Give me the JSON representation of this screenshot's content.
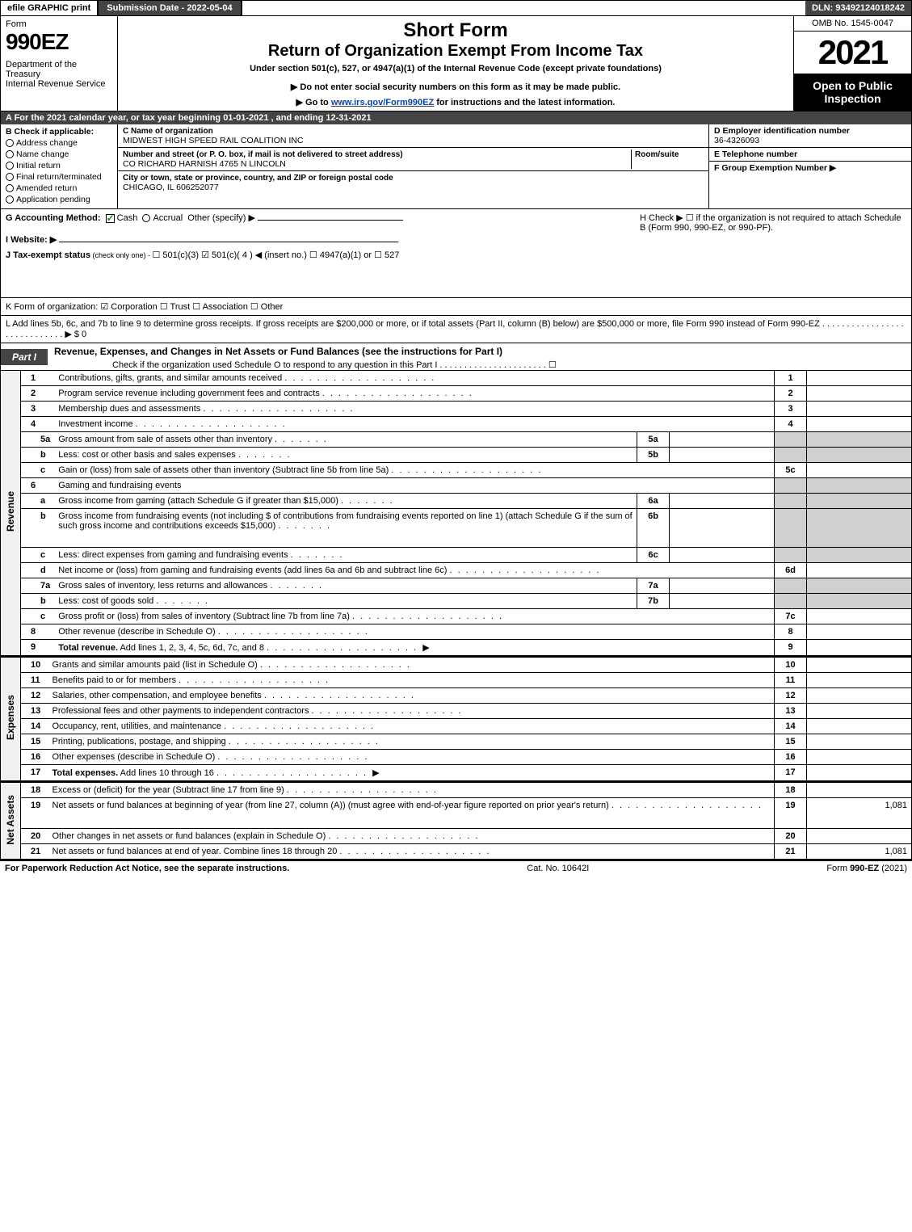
{
  "topbar": {
    "efile": "efile GRAPHIC print",
    "subdate": "Submission Date - 2022-05-04",
    "dln": "DLN: 93492124018242"
  },
  "header": {
    "form_word": "Form",
    "form_num": "990EZ",
    "dept": "Department of the Treasury\nInternal Revenue Service",
    "short": "Short Form",
    "return": "Return of Organization Exempt From Income Tax",
    "under": "Under section 501(c), 527, or 4947(a)(1) of the Internal Revenue Code (except private foundations)",
    "donot": "▶ Do not enter social security numbers on this form as it may be made public.",
    "goto_pre": "▶ Go to ",
    "goto_link": "www.irs.gov/Form990EZ",
    "goto_post": " for instructions and the latest information.",
    "omb": "OMB No. 1545-0047",
    "year": "2021",
    "open": "Open to Public Inspection"
  },
  "rowA": "A  For the 2021 calendar year, or tax year beginning 01-01-2021 , and ending 12-31-2021",
  "colB": {
    "hdr": "B  Check if applicable:",
    "opts": [
      "Address change",
      "Name change",
      "Initial return",
      "Final return/terminated",
      "Amended return",
      "Application pending"
    ]
  },
  "colC": {
    "name_lbl": "C Name of organization",
    "name_val": "MIDWEST HIGH SPEED RAIL COALITION INC",
    "street_lbl": "Number and street (or P. O. box, if mail is not delivered to street address)",
    "street_val": "CO RICHARD HARNISH 4765 N LINCOLN",
    "room_lbl": "Room/suite",
    "city_lbl": "City or town, state or province, country, and ZIP or foreign postal code",
    "city_val": "CHICAGO, IL  606252077"
  },
  "colDE": {
    "d_lbl": "D Employer identification number",
    "d_val": "36-4326093",
    "e_lbl": "E Telephone number",
    "f_lbl": "F Group Exemption Number   ▶"
  },
  "lineG": {
    "pre": "G Accounting Method:",
    "cash": "Cash",
    "accrual": "Accrual",
    "other": "Other (specify) ▶"
  },
  "lineH": "H  Check ▶  ☐  if the organization is not required to attach Schedule B (Form 990, 990-EZ, or 990-PF).",
  "lineI": "I Website: ▶",
  "lineJ_pre": "J Tax-exempt status",
  "lineJ_sub": " (check only one) - ",
  "lineJ_opts": "☐ 501(c)(3)  ☑ 501(c)( 4 ) ◀ (insert no.)  ☐ 4947(a)(1) or  ☐ 527",
  "lineK": "K Form of organization:  ☑ Corporation  ☐ Trust  ☐ Association  ☐ Other",
  "lineL": "L Add lines 5b, 6c, and 7b to line 9 to determine gross receipts. If gross receipts are $200,000 or more, or if total assets (Part II, column (B) below) are $500,000 or more, file Form 990 instead of Form 990-EZ  .  .  .  .  .  .  .  .  .  .  .  .  .  .  .  .  .  .  .  .  .  .  .  .  .  .  .  .  .  ▶ $ 0",
  "part1": {
    "tab": "Part I",
    "title": "Revenue, Expenses, and Changes in Net Assets or Fund Balances (see the instructions for Part I)",
    "sub": "Check if the organization used Schedule O to respond to any question in this Part I .  .  .  .  .  .  .  .  .  .  .  .  .  .  .  .  .  .  .  .  .  .  ☐"
  },
  "sections": {
    "revenue": "Revenue",
    "expenses": "Expenses",
    "netassets": "Net Assets"
  },
  "lines": [
    {
      "n": "1",
      "d": "Contributions, gifts, grants, and similar amounts received",
      "box": "1",
      "v": ""
    },
    {
      "n": "2",
      "d": "Program service revenue including government fees and contracts",
      "box": "2",
      "v": ""
    },
    {
      "n": "3",
      "d": "Membership dues and assessments",
      "box": "3",
      "v": ""
    },
    {
      "n": "4",
      "d": "Investment income",
      "box": "4",
      "v": ""
    },
    {
      "n": "5a",
      "d": "Gross amount from sale of assets other than inventory",
      "ibox": "5a",
      "sub": true
    },
    {
      "n": "b",
      "d": "Less: cost or other basis and sales expenses",
      "ibox": "5b",
      "sub": true
    },
    {
      "n": "c",
      "d": "Gain or (loss) from sale of assets other than inventory (Subtract line 5b from line 5a)",
      "box": "5c",
      "sub": true
    },
    {
      "n": "6",
      "d": "Gaming and fundraising events",
      "plain": true
    },
    {
      "n": "a",
      "d": "Gross income from gaming (attach Schedule G if greater than $15,000)",
      "ibox": "6a",
      "sub": true
    },
    {
      "n": "b",
      "d": "Gross income from fundraising events (not including $               of contributions from fundraising events reported on line 1) (attach Schedule G if the sum of such gross income and contributions exceeds $15,000)",
      "ibox": "6b",
      "sub": true,
      "tall": true
    },
    {
      "n": "c",
      "d": "Less: direct expenses from gaming and fundraising events",
      "ibox": "6c",
      "sub": true
    },
    {
      "n": "d",
      "d": "Net income or (loss) from gaming and fundraising events (add lines 6a and 6b and subtract line 6c)",
      "box": "6d",
      "sub": true
    },
    {
      "n": "7a",
      "d": "Gross sales of inventory, less returns and allowances",
      "ibox": "7a",
      "sub": true
    },
    {
      "n": "b",
      "d": "Less: cost of goods sold",
      "ibox": "7b",
      "sub": true
    },
    {
      "n": "c",
      "d": "Gross profit or (loss) from sales of inventory (Subtract line 7b from line 7a)",
      "box": "7c",
      "sub": true
    },
    {
      "n": "8",
      "d": "Other revenue (describe in Schedule O)",
      "box": "8"
    },
    {
      "n": "9",
      "d": "Total revenue. Add lines 1, 2, 3, 4, 5c, 6d, 7c, and 8",
      "box": "9",
      "bold": true,
      "arrow": true
    }
  ],
  "exp_lines": [
    {
      "n": "10",
      "d": "Grants and similar amounts paid (list in Schedule O)",
      "box": "10"
    },
    {
      "n": "11",
      "d": "Benefits paid to or for members",
      "box": "11"
    },
    {
      "n": "12",
      "d": "Salaries, other compensation, and employee benefits",
      "box": "12"
    },
    {
      "n": "13",
      "d": "Professional fees and other payments to independent contractors",
      "box": "13"
    },
    {
      "n": "14",
      "d": "Occupancy, rent, utilities, and maintenance",
      "box": "14"
    },
    {
      "n": "15",
      "d": "Printing, publications, postage, and shipping",
      "box": "15"
    },
    {
      "n": "16",
      "d": "Other expenses (describe in Schedule O)",
      "box": "16"
    },
    {
      "n": "17",
      "d": "Total expenses. Add lines 10 through 16",
      "box": "17",
      "bold": true,
      "arrow": true
    }
  ],
  "na_lines": [
    {
      "n": "18",
      "d": "Excess or (deficit) for the year (Subtract line 17 from line 9)",
      "box": "18"
    },
    {
      "n": "19",
      "d": "Net assets or fund balances at beginning of year (from line 27, column (A)) (must agree with end-of-year figure reported on prior year's return)",
      "box": "19",
      "v": "1,081",
      "tall": true
    },
    {
      "n": "20",
      "d": "Other changes in net assets or fund balances (explain in Schedule O)",
      "box": "20"
    },
    {
      "n": "21",
      "d": "Net assets or fund balances at end of year. Combine lines 18 through 20",
      "box": "21",
      "v": "1,081"
    }
  ],
  "footer": {
    "left": "For Paperwork Reduction Act Notice, see the separate instructions.",
    "mid": "Cat. No. 10642I",
    "right_pre": "Form ",
    "right_bold": "990-EZ",
    "right_post": " (2021)"
  },
  "colors": {
    "dark_bg": "#444444",
    "green_check": "#2a7a2a",
    "grey_cell": "#d0d0d0",
    "link": "#0645ad"
  }
}
